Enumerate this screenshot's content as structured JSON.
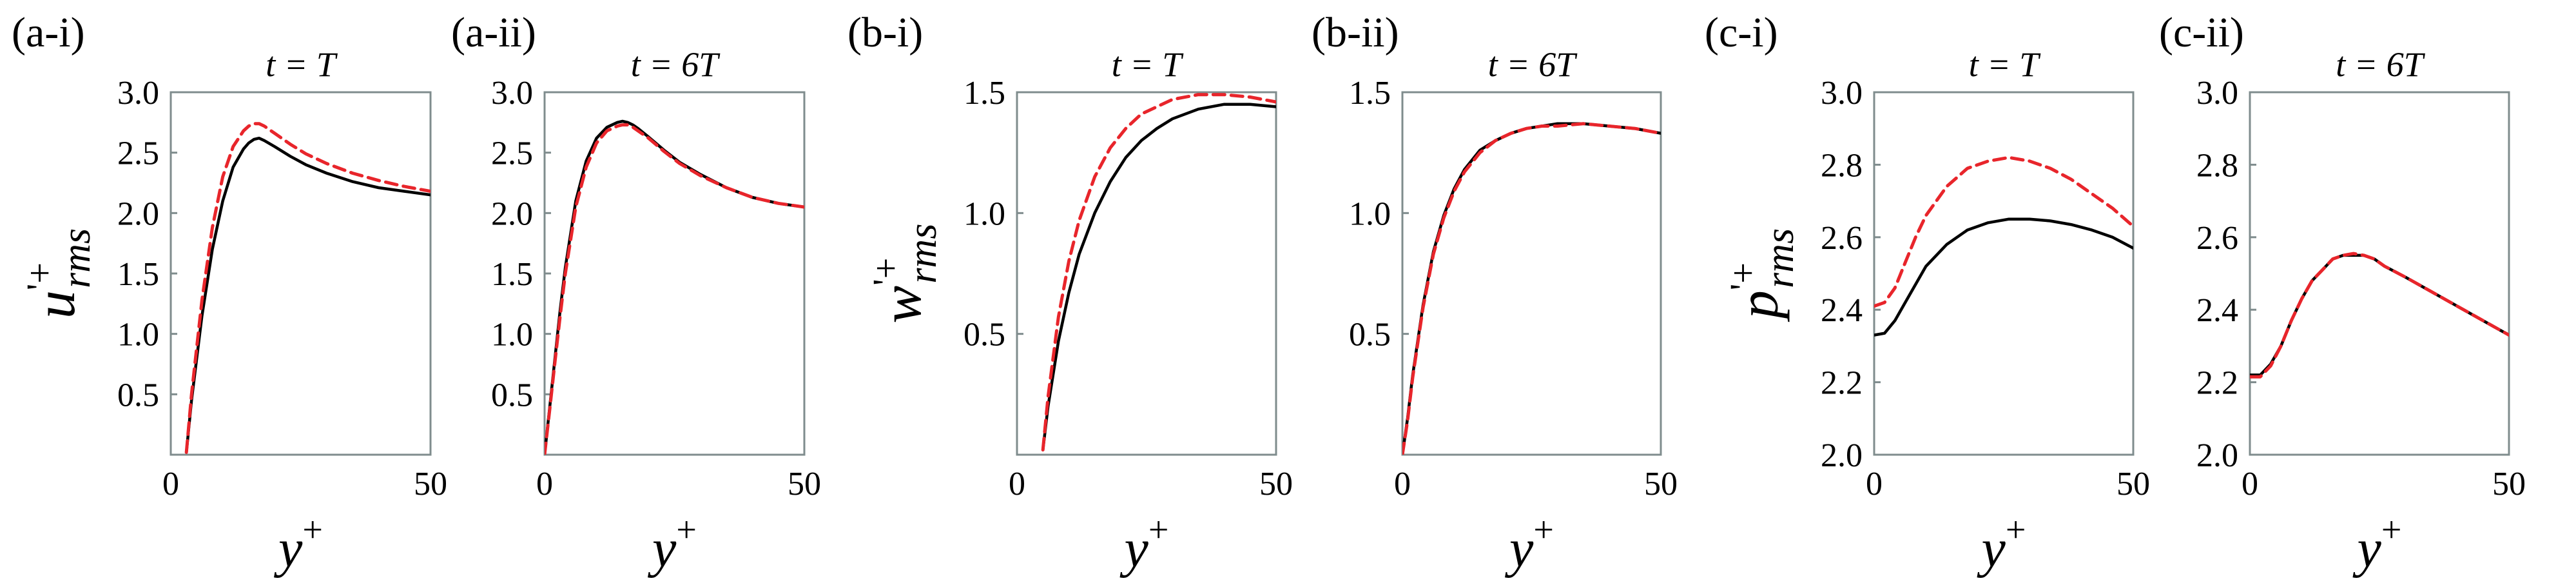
{
  "colors": {
    "black_series": "#000000",
    "red_series": "#e8252b",
    "axes": "#7f8c8d"
  },
  "chart_data": [
    {
      "panel": "(a-i)",
      "type": "line",
      "title": "t = T",
      "xlabel": "y+",
      "ylabel": "u'+rms",
      "xlim": [
        0,
        50
      ],
      "ylim": [
        0,
        3.0
      ],
      "xticks": [
        0,
        50
      ],
      "yticks": [
        0.5,
        1.0,
        1.5,
        2.0,
        2.5,
        3.0
      ],
      "ytick_labels": [
        "0.5",
        "1.0",
        "1.5",
        "2.0",
        "2.5",
        "3.0"
      ],
      "grid": false,
      "series": [
        {
          "color": "#000000",
          "style": "solid",
          "x": [
            3,
            4,
            6,
            8,
            10,
            12,
            14,
            15,
            16,
            17,
            18,
            20,
            23,
            26,
            30,
            35,
            40,
            45,
            50
          ],
          "y": [
            0.02,
            0.45,
            1.15,
            1.7,
            2.1,
            2.38,
            2.53,
            2.58,
            2.61,
            2.62,
            2.6,
            2.55,
            2.47,
            2.4,
            2.33,
            2.26,
            2.21,
            2.18,
            2.15
          ]
        },
        {
          "color": "#e8252b",
          "style": "dashed",
          "x": [
            3,
            4,
            6,
            8,
            10,
            12,
            14,
            15,
            16,
            17,
            18,
            20,
            23,
            26,
            30,
            35,
            40,
            45,
            50
          ],
          "y": [
            0.02,
            0.5,
            1.28,
            1.88,
            2.3,
            2.55,
            2.68,
            2.72,
            2.74,
            2.74,
            2.72,
            2.66,
            2.57,
            2.49,
            2.41,
            2.33,
            2.27,
            2.22,
            2.18
          ]
        }
      ]
    },
    {
      "panel": "(a-ii)",
      "type": "line",
      "title": "t = 6T",
      "xlabel": "y+",
      "ylabel": "",
      "xlim": [
        0,
        50
      ],
      "ylim": [
        0,
        3.0
      ],
      "xticks": [
        0,
        50
      ],
      "yticks": [
        0.5,
        1.0,
        1.5,
        2.0,
        2.5,
        3.0
      ],
      "ytick_labels": [
        "0.5",
        "1.0",
        "1.5",
        "2.0",
        "2.5",
        "3.0"
      ],
      "grid": false,
      "series": [
        {
          "color": "#000000",
          "style": "solid",
          "x": [
            0,
            1,
            2,
            3,
            4,
            6,
            8,
            10,
            12,
            14,
            15,
            16,
            17,
            18,
            20,
            23,
            26,
            30,
            35,
            40,
            45,
            50
          ],
          "y": [
            0.0,
            0.4,
            0.8,
            1.2,
            1.55,
            2.1,
            2.43,
            2.62,
            2.71,
            2.75,
            2.76,
            2.75,
            2.73,
            2.7,
            2.63,
            2.52,
            2.42,
            2.32,
            2.21,
            2.13,
            2.08,
            2.05
          ]
        },
        {
          "color": "#e8252b",
          "style": "dashed",
          "x": [
            0,
            1,
            2,
            3,
            4,
            6,
            8,
            10,
            12,
            14,
            15,
            16,
            17,
            18,
            20,
            23,
            26,
            30,
            35,
            40,
            45,
            50
          ],
          "y": [
            0.0,
            0.38,
            0.77,
            1.15,
            1.5,
            2.05,
            2.38,
            2.58,
            2.68,
            2.72,
            2.73,
            2.73,
            2.71,
            2.68,
            2.62,
            2.51,
            2.41,
            2.31,
            2.21,
            2.13,
            2.08,
            2.05
          ]
        }
      ]
    },
    {
      "panel": "(b-i)",
      "type": "line",
      "title": "t = T",
      "xlabel": "y+",
      "ylabel": "w'+rms",
      "xlim": [
        0,
        50
      ],
      "ylim": [
        0,
        1.5
      ],
      "xticks": [
        0,
        50
      ],
      "yticks": [
        0.5,
        1.0,
        1.5
      ],
      "ytick_labels": [
        "0.5",
        "1.0",
        "1.5"
      ],
      "grid": false,
      "series": [
        {
          "color": "#000000",
          "style": "solid",
          "x": [
            5,
            6,
            8,
            10,
            12,
            15,
            18,
            21,
            24,
            27,
            30,
            35,
            40,
            45,
            50
          ],
          "y": [
            0.02,
            0.2,
            0.47,
            0.67,
            0.83,
            1.0,
            1.13,
            1.23,
            1.3,
            1.35,
            1.39,
            1.43,
            1.45,
            1.45,
            1.44
          ]
        },
        {
          "color": "#e8252b",
          "style": "dashed",
          "x": [
            5,
            6,
            8,
            10,
            12,
            15,
            18,
            21,
            24,
            27,
            30,
            35,
            40,
            45,
            50
          ],
          "y": [
            0.02,
            0.24,
            0.57,
            0.8,
            0.97,
            1.15,
            1.27,
            1.35,
            1.41,
            1.44,
            1.47,
            1.49,
            1.49,
            1.48,
            1.46
          ]
        }
      ]
    },
    {
      "panel": "(b-ii)",
      "type": "line",
      "title": "t = 6T",
      "xlabel": "y+",
      "ylabel": "",
      "xlim": [
        0,
        50
      ],
      "ylim": [
        0,
        1.5
      ],
      "xticks": [
        0,
        50
      ],
      "yticks": [
        0.5,
        1.0,
        1.5
      ],
      "ytick_labels": [
        "0.5",
        "1.0",
        "1.5"
      ],
      "grid": false,
      "series": [
        {
          "color": "#000000",
          "style": "solid",
          "x": [
            0,
            1,
            2,
            4,
            6,
            8,
            10,
            12,
            15,
            18,
            21,
            24,
            27,
            30,
            35,
            40,
            45,
            50
          ],
          "y": [
            0.0,
            0.15,
            0.33,
            0.62,
            0.84,
            0.99,
            1.1,
            1.18,
            1.26,
            1.3,
            1.33,
            1.35,
            1.36,
            1.37,
            1.37,
            1.36,
            1.35,
            1.33
          ]
        },
        {
          "color": "#e8252b",
          "style": "dashed",
          "x": [
            0,
            1,
            2,
            4,
            6,
            8,
            10,
            12,
            15,
            18,
            21,
            24,
            27,
            30,
            35,
            40,
            45,
            50
          ],
          "y": [
            0.0,
            0.14,
            0.32,
            0.61,
            0.83,
            0.98,
            1.09,
            1.17,
            1.25,
            1.3,
            1.33,
            1.35,
            1.36,
            1.36,
            1.37,
            1.36,
            1.35,
            1.33
          ]
        }
      ]
    },
    {
      "panel": "(c-i)",
      "type": "line",
      "title": "t = T",
      "xlabel": "y+",
      "ylabel": "p'+rms",
      "xlim": [
        0,
        50
      ],
      "ylim": [
        2.0,
        3.0
      ],
      "xticks": [
        0,
        50
      ],
      "yticks": [
        2.0,
        2.2,
        2.4,
        2.6,
        2.8,
        3.0
      ],
      "ytick_labels": [
        "2.0",
        "2.2",
        "2.4",
        "2.6",
        "2.8",
        "3.0"
      ],
      "grid": false,
      "series": [
        {
          "color": "#000000",
          "style": "solid",
          "x": [
            0,
            2,
            4,
            6,
            8,
            10,
            14,
            18,
            22,
            26,
            30,
            34,
            38,
            42,
            46,
            50
          ],
          "y": [
            2.33,
            2.335,
            2.37,
            2.42,
            2.47,
            2.52,
            2.58,
            2.62,
            2.64,
            2.65,
            2.65,
            2.645,
            2.635,
            2.62,
            2.6,
            2.57
          ]
        },
        {
          "color": "#e8252b",
          "style": "dashed",
          "x": [
            0,
            2,
            4,
            6,
            8,
            10,
            14,
            18,
            22,
            26,
            30,
            34,
            38,
            42,
            46,
            50
          ],
          "y": [
            2.41,
            2.42,
            2.46,
            2.53,
            2.6,
            2.66,
            2.74,
            2.79,
            2.81,
            2.82,
            2.81,
            2.79,
            2.76,
            2.72,
            2.68,
            2.63
          ]
        }
      ]
    },
    {
      "panel": "(c-ii)",
      "type": "line",
      "title": "t = 6T",
      "xlabel": "y+",
      "ylabel": "",
      "xlim": [
        0,
        50
      ],
      "ylim": [
        2.0,
        3.0
      ],
      "xticks": [
        0,
        50
      ],
      "yticks": [
        2.0,
        2.2,
        2.4,
        2.6,
        2.8,
        3.0
      ],
      "ytick_labels": [
        "2.0",
        "2.2",
        "2.4",
        "2.6",
        "2.8",
        "3.0"
      ],
      "grid": false,
      "series": [
        {
          "color": "#000000",
          "style": "solid",
          "x": [
            0,
            2,
            4,
            6,
            8,
            10,
            12,
            14,
            16,
            18,
            20,
            22,
            24,
            26,
            30,
            35,
            40,
            45,
            50
          ],
          "y": [
            2.22,
            2.22,
            2.25,
            2.3,
            2.37,
            2.43,
            2.48,
            2.51,
            2.54,
            2.55,
            2.55,
            2.55,
            2.54,
            2.52,
            2.49,
            2.45,
            2.41,
            2.37,
            2.33
          ]
        },
        {
          "color": "#e8252b",
          "style": "dashed",
          "x": [
            0,
            2,
            4,
            6,
            8,
            10,
            12,
            14,
            16,
            18,
            20,
            22,
            24,
            26,
            30,
            35,
            40,
            45,
            50
          ],
          "y": [
            2.215,
            2.215,
            2.245,
            2.3,
            2.37,
            2.43,
            2.48,
            2.51,
            2.54,
            2.55,
            2.555,
            2.55,
            2.54,
            2.52,
            2.49,
            2.45,
            2.41,
            2.37,
            2.33
          ]
        }
      ]
    }
  ]
}
